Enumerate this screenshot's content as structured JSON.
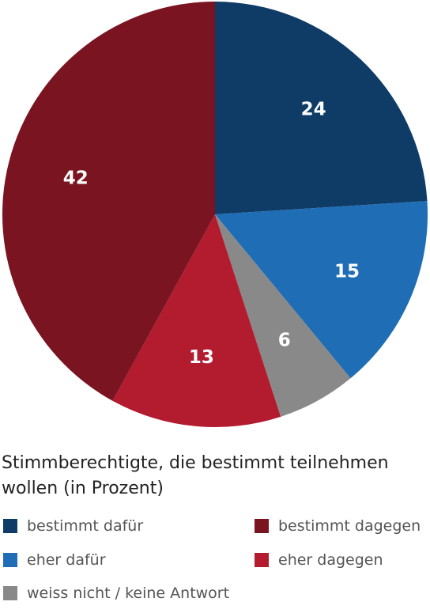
{
  "chart_data": {
    "type": "pie",
    "title": "Stimmberechtigte, die bestimmt teilnehmen wollen (in Prozent)",
    "categories": [
      "bestimmt dafür",
      "eher dafür",
      "weiss nicht / keine Antwort",
      "eher dagegen",
      "bestimmt dagegen"
    ],
    "values": [
      24,
      15,
      6,
      13,
      42
    ],
    "colors": [
      "#0e3c67",
      "#1f6db5",
      "#898989",
      "#b31b2e",
      "#7a1420"
    ],
    "legend_placement": "bottom",
    "legend": [
      {
        "label": "bestimmt dafür",
        "color": "#0e3c67"
      },
      {
        "label": "bestimmt dagegen",
        "color": "#7a1420"
      },
      {
        "label": "eher dafür",
        "color": "#1f6db5"
      },
      {
        "label": "eher dagegen",
        "color": "#b31b2e"
      },
      {
        "label": "weiss nicht / keine Antwort",
        "color": "#898989"
      }
    ]
  }
}
